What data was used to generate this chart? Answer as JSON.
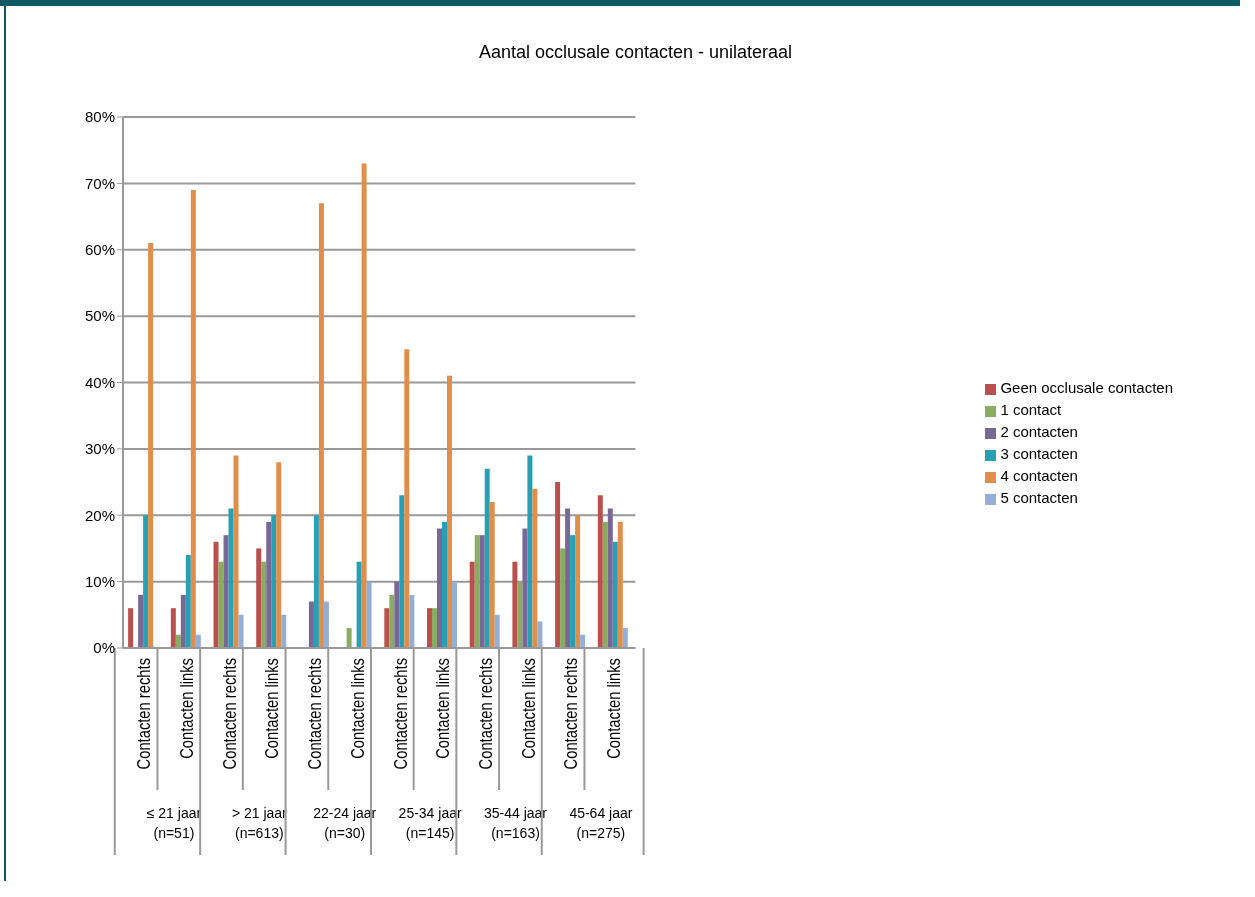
{
  "chart_data": {
    "type": "bar",
    "title": "Aantal occlusale contacten - unilateraal",
    "categories": [
      "Contacten rechts",
      "Contacten links",
      "Contacten rechts",
      "Contacten links",
      "Contacten rechts",
      "Contacten links",
      "Contacten rechts",
      "Contacten links",
      "Contacten rechts",
      "Contacten links",
      "Contacten rechts",
      "Contacten links"
    ],
    "annotations": [
      "≤ 21 jaar\n(n=51)",
      "> 21 jaar\n(n=613)",
      "22-24 jaar\n(n=30)",
      "25-34 jaar\n(n=145)",
      "35-44 jaar\n(n=163)",
      "45-64 jaar\n(n=275)"
    ],
    "series": [
      {
        "name": "Geen occlusale contacten",
        "color": "#b9504d",
        "values": [
          6,
          6,
          16,
          15,
          0,
          0,
          6,
          6,
          13,
          13,
          25,
          23
        ]
      },
      {
        "name": "1 contact",
        "color": "#8aac62",
        "values": [
          0,
          2,
          13,
          13,
          0,
          3,
          8,
          6,
          17,
          10,
          15,
          19
        ]
      },
      {
        "name": "2 contacten",
        "color": "#786896",
        "values": [
          8,
          8,
          17,
          19,
          7,
          0,
          10,
          18,
          17,
          18,
          21,
          21
        ]
      },
      {
        "name": "3 contacten",
        "color": "#27a0b6",
        "values": [
          20,
          14,
          21,
          20,
          20,
          13,
          23,
          19,
          27,
          29,
          17,
          16
        ]
      },
      {
        "name": "4 contacten",
        "color": "#e08f4a",
        "values": [
          61,
          69,
          29,
          28,
          67,
          73,
          45,
          41,
          22,
          24,
          20,
          19
        ]
      },
      {
        "name": "5 contacten",
        "color": "#94afd6",
        "values": [
          0,
          2,
          5,
          5,
          7,
          10,
          8,
          10,
          5,
          4,
          2,
          3
        ]
      }
    ],
    "ylim": [
      0,
      80
    ],
    "yticks": [
      {
        "value": 0,
        "label": "0%"
      },
      {
        "value": 10,
        "label": "10%"
      },
      {
        "value": 20,
        "label": "20%"
      },
      {
        "value": 30,
        "label": "30%"
      },
      {
        "value": 40,
        "label": "40%"
      },
      {
        "value": 50,
        "label": "50%"
      },
      {
        "value": 60,
        "label": "60%"
      },
      {
        "value": 70,
        "label": "70%"
      },
      {
        "value": 80,
        "label": "80%"
      }
    ],
    "grid": "y",
    "legend": "right"
  }
}
